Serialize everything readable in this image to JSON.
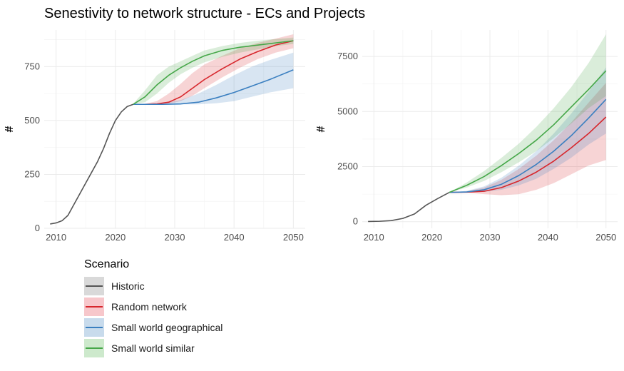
{
  "title": "Senestivity to network structure - ECs and Projects",
  "legend": {
    "title": "Scenario",
    "items": [
      {
        "key": "historic",
        "label": "Historic",
        "line_color": "#555555",
        "fill_color": "#d9d9d9"
      },
      {
        "key": "random",
        "label": "Random network",
        "line_color": "#d7262c",
        "fill_color": "#f7c7cb"
      },
      {
        "key": "geo",
        "label": "Small world geographical",
        "line_color": "#3a7fc0",
        "fill_color": "#c8dbec"
      },
      {
        "key": "similar",
        "label": "Small world similar",
        "line_color": "#45a748",
        "fill_color": "#cde9cc"
      }
    ]
  },
  "chart_data": [
    {
      "type": "line",
      "panel": "left",
      "ylabel": "#",
      "xlim": [
        2008,
        2052
      ],
      "ylim": [
        0,
        920
      ],
      "x_ticks": [
        2010,
        2020,
        2030,
        2040,
        2050
      ],
      "y_ticks": [
        0,
        250,
        500,
        750
      ],
      "grid": true,
      "series": [
        {
          "key": "historic",
          "name": "Historic",
          "x": [
            2009,
            2010,
            2011,
            2012,
            2013,
            2014,
            2015,
            2016,
            2017,
            2018,
            2019,
            2020,
            2021,
            2022,
            2023
          ],
          "y": [
            20,
            25,
            35,
            60,
            110,
            160,
            210,
            260,
            310,
            370,
            440,
            500,
            540,
            565,
            575
          ]
        },
        {
          "key": "random",
          "name": "Random network",
          "x": [
            2023,
            2025,
            2027,
            2029,
            2031,
            2033,
            2035,
            2038,
            2041,
            2044,
            2047,
            2050
          ],
          "y": [
            575,
            575,
            577,
            585,
            610,
            650,
            690,
            740,
            785,
            820,
            850,
            870
          ],
          "lower": [
            575,
            575,
            575,
            578,
            590,
            615,
            650,
            700,
            745,
            785,
            815,
            835
          ],
          "upper": [
            575,
            578,
            590,
            625,
            670,
            720,
            760,
            800,
            835,
            860,
            880,
            900
          ]
        },
        {
          "key": "geo",
          "name": "Small world geographical",
          "x": [
            2023,
            2025,
            2028,
            2031,
            2034,
            2037,
            2040,
            2043,
            2046,
            2050
          ],
          "y": [
            575,
            575,
            575,
            577,
            585,
            605,
            630,
            660,
            690,
            735
          ],
          "lower": [
            575,
            575,
            575,
            575,
            575,
            580,
            590,
            610,
            630,
            650
          ],
          "upper": [
            575,
            576,
            580,
            595,
            625,
            665,
            710,
            750,
            780,
            815
          ]
        },
        {
          "key": "similar",
          "name": "Small world similar",
          "x": [
            2023,
            2025,
            2027,
            2029,
            2031,
            2033,
            2035,
            2038,
            2041,
            2044,
            2047,
            2050
          ],
          "y": [
            575,
            610,
            665,
            710,
            745,
            775,
            800,
            825,
            840,
            850,
            860,
            870
          ],
          "lower": [
            575,
            585,
            625,
            675,
            715,
            745,
            770,
            795,
            815,
            830,
            845,
            855
          ],
          "upper": [
            578,
            640,
            710,
            750,
            775,
            800,
            825,
            845,
            860,
            870,
            878,
            885
          ]
        }
      ]
    },
    {
      "type": "line",
      "panel": "right",
      "ylabel": "#",
      "xlim": [
        2008,
        2052
      ],
      "ylim": [
        -300,
        8700
      ],
      "x_ticks": [
        2010,
        2020,
        2030,
        2040,
        2050
      ],
      "y_ticks": [
        0,
        2500,
        5000,
        7500
      ],
      "grid": true,
      "series": [
        {
          "key": "historic",
          "name": "Historic",
          "x": [
            2009,
            2011,
            2013,
            2015,
            2017,
            2019,
            2021,
            2023
          ],
          "y": [
            10,
            20,
            50,
            150,
            350,
            750,
            1050,
            1330
          ]
        },
        {
          "key": "random",
          "name": "Random network",
          "x": [
            2023,
            2026,
            2029,
            2032,
            2035,
            2038,
            2041,
            2044,
            2047,
            2050
          ],
          "y": [
            1330,
            1340,
            1380,
            1550,
            1850,
            2250,
            2750,
            3350,
            4000,
            4750
          ],
          "lower": [
            1330,
            1320,
            1250,
            1200,
            1250,
            1450,
            1750,
            2150,
            2550,
            2800
          ],
          "upper": [
            1330,
            1380,
            1550,
            1900,
            2400,
            3000,
            3700,
            4500,
            5400,
            6300
          ]
        },
        {
          "key": "geo",
          "name": "Small world geographical",
          "x": [
            2023,
            2026,
            2029,
            2032,
            2035,
            2038,
            2041,
            2044,
            2047,
            2050
          ],
          "y": [
            1330,
            1350,
            1450,
            1700,
            2100,
            2600,
            3200,
            3900,
            4700,
            5550
          ],
          "lower": [
            1330,
            1330,
            1350,
            1450,
            1650,
            1950,
            2400,
            2900,
            3500,
            4000
          ],
          "upper": [
            1330,
            1400,
            1600,
            2000,
            2550,
            3200,
            4000,
            4900,
            5900,
            7000
          ]
        },
        {
          "key": "similar",
          "name": "Small world similar",
          "x": [
            2023,
            2026,
            2029,
            2032,
            2035,
            2038,
            2041,
            2044,
            2047,
            2050
          ],
          "y": [
            1330,
            1650,
            2050,
            2550,
            3100,
            3700,
            4400,
            5200,
            6000,
            6850
          ],
          "lower": [
            1330,
            1550,
            1850,
            2250,
            2700,
            3200,
            3800,
            4450,
            5150,
            5700
          ],
          "upper": [
            1330,
            1780,
            2300,
            2900,
            3550,
            4300,
            5150,
            6100,
            7200,
            8500
          ]
        }
      ]
    }
  ]
}
